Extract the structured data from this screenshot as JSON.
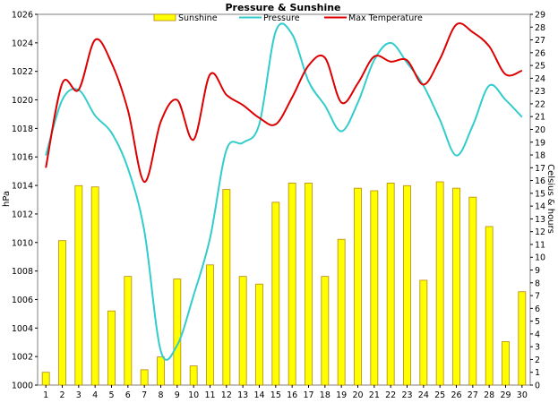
{
  "chart_data": {
    "type": "bar+line",
    "title": "Pressure & Sunshine",
    "x": [
      1,
      2,
      3,
      4,
      5,
      6,
      7,
      8,
      9,
      10,
      11,
      12,
      13,
      14,
      15,
      16,
      17,
      18,
      19,
      20,
      21,
      22,
      23,
      24,
      25,
      26,
      27,
      28,
      29,
      30
    ],
    "y_left_label": "hPa",
    "y_right_label": "Celsius & hours",
    "y_left_lim": [
      1000,
      1026
    ],
    "y_right_lim": [
      0,
      29
    ],
    "y_left_ticks": [
      1000,
      1002,
      1004,
      1006,
      1008,
      1010,
      1012,
      1014,
      1016,
      1018,
      1020,
      1022,
      1024,
      1026
    ],
    "y_right_ticks": [
      0,
      1,
      2,
      3,
      4,
      5,
      6,
      7,
      8,
      9,
      10,
      11,
      12,
      13,
      14,
      15,
      16,
      17,
      18,
      19,
      20,
      21,
      22,
      23,
      24,
      25,
      26,
      27,
      28,
      29
    ],
    "legend_position": "top",
    "colors": {
      "sunshine_fill": "#ffff00",
      "sunshine_edge": "#b8860b",
      "pressure": "#33cccc",
      "max_temperature": "#dd0000",
      "frame": "#7f7f7f"
    },
    "series": [
      {
        "name": "Sunshine",
        "kind": "bar",
        "axis": "right",
        "values": [
          1.0,
          11.3,
          15.6,
          15.5,
          5.8,
          8.5,
          1.2,
          2.2,
          8.3,
          1.5,
          9.4,
          15.3,
          8.5,
          7.9,
          14.3,
          15.8,
          15.8,
          8.5,
          11.4,
          15.4,
          15.2,
          15.8,
          15.6,
          8.2,
          15.9,
          15.4,
          14.7,
          12.4,
          3.4,
          7.3
        ]
      },
      {
        "name": "Pressure",
        "kind": "line",
        "axis": "left",
        "values": [
          1016.1,
          1020.0,
          1020.7,
          1018.9,
          1017.7,
          1015.2,
          1010.8,
          1002.4,
          1002.8,
          1006.3,
          1010.3,
          1016.5,
          1017.0,
          1018.3,
          1024.8,
          1024.6,
          1021.3,
          1019.6,
          1017.8,
          1019.8,
          1022.8,
          1024.0,
          1022.6,
          1021.0,
          1018.6,
          1016.1,
          1018.2,
          1021.0,
          1020.0,
          1018.8
        ]
      },
      {
        "name": "Max Temperature",
        "kind": "line",
        "axis": "right",
        "values": [
          17.0,
          23.6,
          23.1,
          27.0,
          25.2,
          21.5,
          15.9,
          20.6,
          22.3,
          19.2,
          24.3,
          22.7,
          21.9,
          20.9,
          20.4,
          22.5,
          25.0,
          25.6,
          22.1,
          23.6,
          25.7,
          25.3,
          25.4,
          23.5,
          25.5,
          28.2,
          27.6,
          26.5,
          24.3,
          24.6
        ]
      }
    ]
  }
}
